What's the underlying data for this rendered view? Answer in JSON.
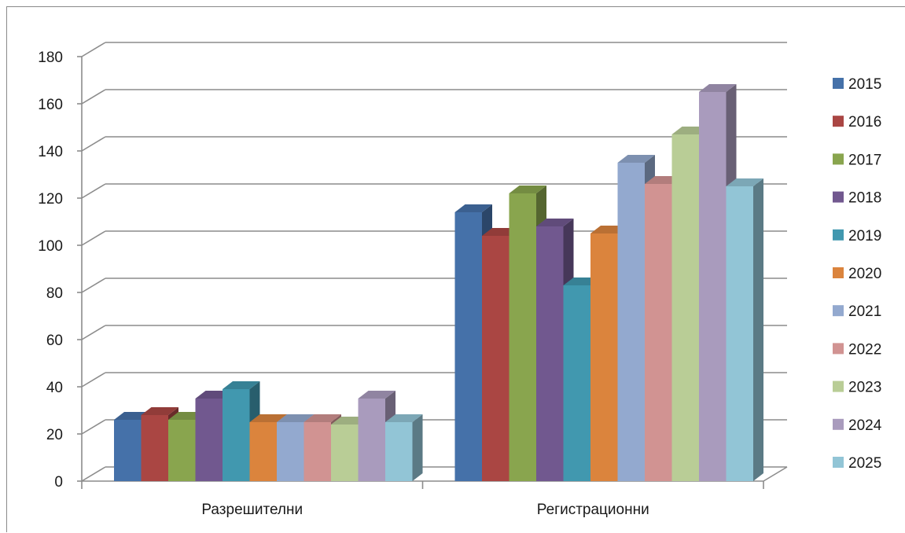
{
  "chart_data": {
    "type": "bar",
    "style": "3d-clustered-column",
    "categories": [
      "Разрешителни",
      "Регистрационни"
    ],
    "series": [
      {
        "name": "2015",
        "color": "#4571A9",
        "values": [
          26,
          114
        ]
      },
      {
        "name": "2016",
        "color": "#AA4643",
        "values": [
          28,
          104
        ]
      },
      {
        "name": "2017",
        "color": "#89A54E",
        "values": [
          26,
          122
        ]
      },
      {
        "name": "2018",
        "color": "#71588F",
        "values": [
          35,
          108
        ]
      },
      {
        "name": "2019",
        "color": "#4198AF",
        "values": [
          39,
          83
        ]
      },
      {
        "name": "2020",
        "color": "#DB843D",
        "values": [
          25,
          105
        ]
      },
      {
        "name": "2021",
        "color": "#93A9CF",
        "values": [
          25,
          135
        ]
      },
      {
        "name": "2022",
        "color": "#D19392",
        "values": [
          25,
          126
        ]
      },
      {
        "name": "2023",
        "color": "#B9CD96",
        "values": [
          24,
          147
        ]
      },
      {
        "name": "2024",
        "color": "#A99BBD",
        "values": [
          35,
          165
        ]
      },
      {
        "name": "2025",
        "color": "#92C5D6",
        "values": [
          25,
          125
        ]
      }
    ],
    "ylim": [
      0,
      180
    ],
    "yticks": [
      0,
      20,
      40,
      60,
      80,
      100,
      120,
      140,
      160,
      180
    ],
    "grid": true,
    "legend_position": "right",
    "title": "",
    "xlabel": "",
    "ylabel": ""
  }
}
